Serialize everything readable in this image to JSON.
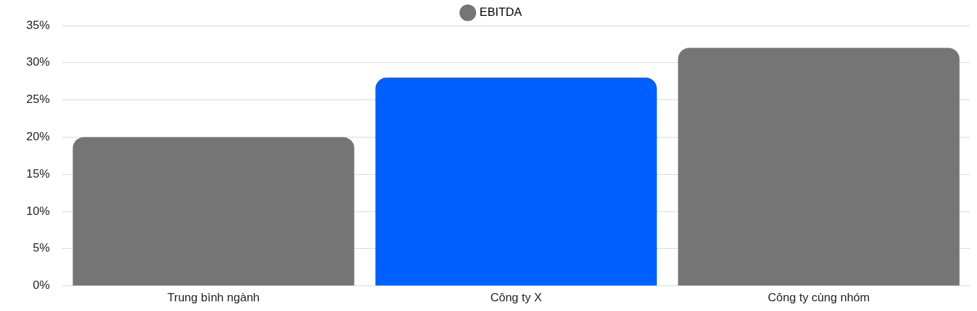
{
  "chart_data": {
    "type": "bar",
    "categories": [
      "Trung bình ngành",
      "Công ty X",
      "Công ty cùng nhóm"
    ],
    "series": [
      {
        "name": "EBITDA",
        "color": "#757575",
        "colors": [
          "#757575",
          "#005fff",
          "#757575"
        ],
        "values": [
          20,
          28,
          32
        ]
      }
    ],
    "ylim": [
      0,
      35
    ],
    "yticks": [
      {
        "value": 0,
        "label": "0%"
      },
      {
        "value": 5,
        "label": "5%"
      },
      {
        "value": 10,
        "label": "10%"
      },
      {
        "value": 15,
        "label": "15%"
      },
      {
        "value": 20,
        "label": "20%"
      },
      {
        "value": 25,
        "label": "25%"
      },
      {
        "value": 30,
        "label": "30%"
      },
      {
        "value": 35,
        "label": "35%"
      }
    ],
    "grid": "y",
    "legend": "top"
  }
}
